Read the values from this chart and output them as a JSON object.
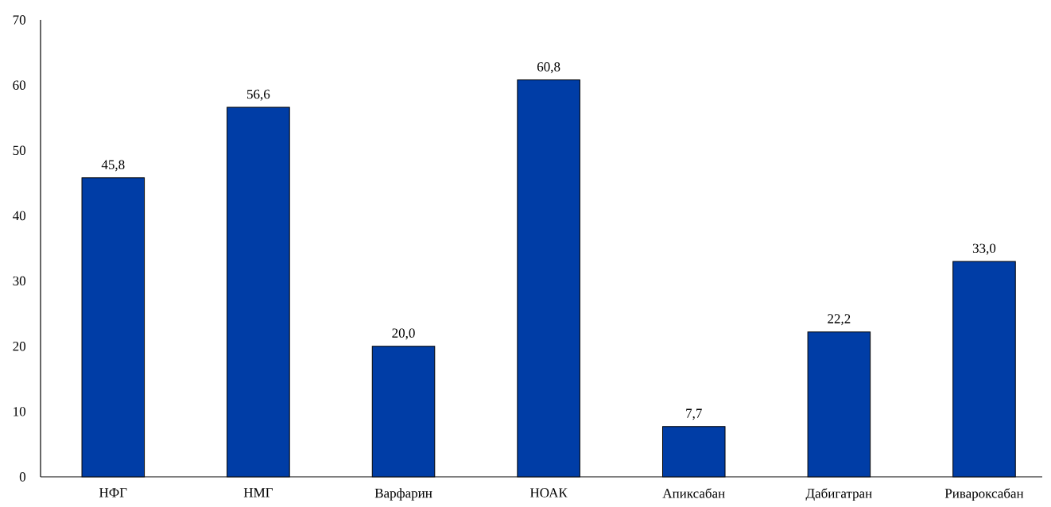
{
  "chart_data": {
    "type": "bar",
    "categories": [
      "НФГ",
      "НМГ",
      "Варфарин",
      "НОАК",
      "Апиксабан",
      "Дабигатран",
      "Ривароксабан"
    ],
    "values": [
      45.8,
      56.6,
      20.0,
      60.8,
      7.7,
      22.2,
      33.0
    ],
    "value_labels": [
      "45,8",
      "56,6",
      "20,0",
      "60,8",
      "7,7",
      "22,2",
      "33,0"
    ],
    "color": "#003da6",
    "ylim": [
      0,
      70
    ],
    "yticks": [
      0,
      10,
      20,
      30,
      40,
      50,
      60,
      70
    ]
  }
}
